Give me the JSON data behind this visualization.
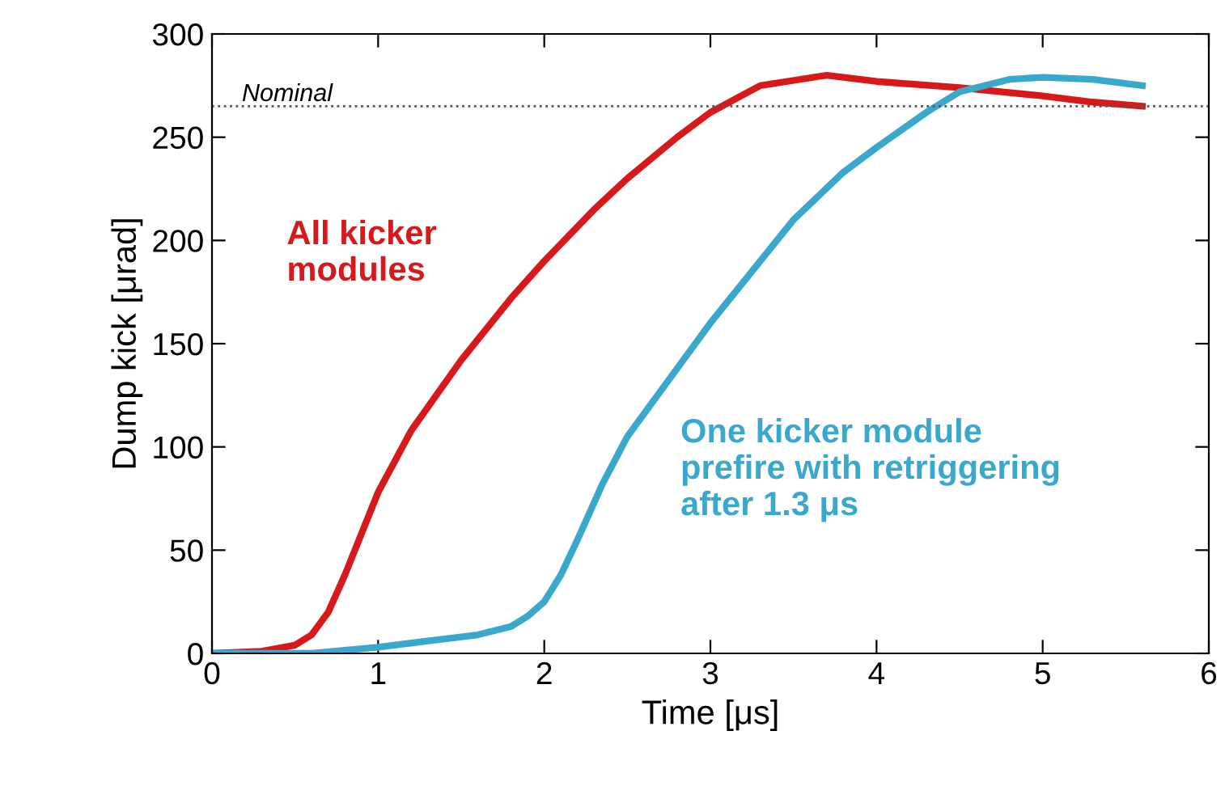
{
  "chart_data": {
    "type": "line",
    "xlabel": "Time [μs]",
    "ylabel": "Dump kick [μrad]",
    "xlim": [
      0,
      6
    ],
    "xticks": [
      0,
      1,
      2,
      3,
      4,
      5,
      6
    ],
    "ylim": [
      0,
      300
    ],
    "yticks": [
      0,
      50,
      100,
      150,
      200,
      250,
      300
    ],
    "grid": false,
    "legend": false,
    "line_style": "solid",
    "marker": "none",
    "series": [
      {
        "name": "All kicker\nmodules",
        "color": "#d7191c",
        "x": [
          0,
          0.3,
          0.5,
          0.6,
          0.7,
          0.8,
          0.9,
          1.0,
          1.2,
          1.5,
          1.8,
          2.0,
          2.3,
          2.5,
          2.8,
          3.0,
          3.3,
          3.7,
          4.0,
          4.5,
          5.0,
          5.3,
          5.6
        ],
        "values": [
          0,
          1,
          4,
          9,
          20,
          38,
          58,
          78,
          108,
          142,
          172,
          190,
          215,
          230,
          250,
          262,
          275,
          280,
          277,
          274,
          270,
          267,
          265
        ]
      },
      {
        "name": "One kicker module\nprefire with retriggering\nafter 1.3 μs",
        "color": "#3aa8cc",
        "x": [
          0,
          0.6,
          1.0,
          1.3,
          1.6,
          1.8,
          1.9,
          2.0,
          2.1,
          2.2,
          2.35,
          2.5,
          2.8,
          3.0,
          3.3,
          3.5,
          3.8,
          4.0,
          4.3,
          4.5,
          4.8,
          5.0,
          5.3,
          5.6
        ],
        "values": [
          0,
          0,
          3,
          6,
          9,
          13,
          18,
          25,
          38,
          55,
          82,
          105,
          138,
          160,
          190,
          210,
          233,
          245,
          262,
          272,
          278,
          279,
          278,
          275
        ]
      }
    ],
    "ref_lines": [
      {
        "axis": "y",
        "value": 265,
        "label": "Nominal",
        "color": "#555555",
        "line_style": "dotted"
      }
    ]
  }
}
